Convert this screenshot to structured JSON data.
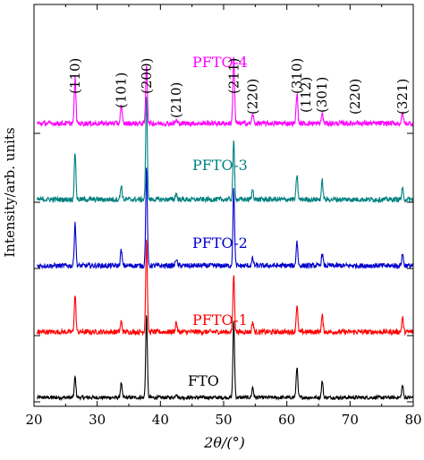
{
  "chart_data": {
    "type": "line",
    "title": "",
    "xlabel": "2θ/(°)",
    "ylabel": "Intensity/arb. units",
    "xlim": [
      20,
      80
    ],
    "x_ticks": [
      20,
      30,
      40,
      50,
      60,
      70,
      80
    ],
    "y_ticks_per_series": 1,
    "grid": false,
    "legend": "inline labels on each trace",
    "series": [
      {
        "name": "FTO",
        "color": "#000000",
        "offset": 0,
        "noise": 0.25,
        "peaks": [
          [
            26.5,
            2.0
          ],
          [
            33.8,
            1.4
          ],
          [
            37.8,
            8.0
          ],
          [
            42.5,
            0.4
          ],
          [
            51.6,
            7.4
          ],
          [
            54.6,
            1.0
          ],
          [
            61.6,
            3.0
          ],
          [
            65.6,
            1.6
          ],
          [
            78.3,
            1.2
          ]
        ]
      },
      {
        "name": "PFTO-1",
        "color": "#ff0000",
        "offset": 1,
        "noise": 0.35,
        "peaks": [
          [
            26.5,
            3.6
          ],
          [
            33.8,
            1.0
          ],
          [
            37.8,
            9.0
          ],
          [
            42.5,
            1.0
          ],
          [
            51.6,
            5.6
          ],
          [
            54.6,
            1.0
          ],
          [
            61.6,
            2.6
          ],
          [
            65.6,
            1.6
          ],
          [
            78.3,
            1.4
          ]
        ]
      },
      {
        "name": "PFTO-2",
        "color": "#0000cd",
        "offset": 2,
        "noise": 0.35,
        "peaks": [
          [
            26.5,
            4.2
          ],
          [
            33.8,
            1.5
          ],
          [
            37.8,
            9.4
          ],
          [
            42.5,
            0.7
          ],
          [
            51.6,
            7.4
          ],
          [
            54.6,
            0.7
          ],
          [
            61.6,
            2.4
          ],
          [
            65.6,
            1.2
          ],
          [
            78.3,
            1.2
          ]
        ]
      },
      {
        "name": "PFTO-3",
        "color": "#008080",
        "offset": 3,
        "noise": 0.35,
        "peaks": [
          [
            26.5,
            4.6
          ],
          [
            33.8,
            1.4
          ],
          [
            37.8,
            10.0
          ],
          [
            42.5,
            0.6
          ],
          [
            51.6,
            5.6
          ],
          [
            54.6,
            1.0
          ],
          [
            61.6,
            2.4
          ],
          [
            65.6,
            1.8
          ],
          [
            78.3,
            1.0
          ]
        ]
      },
      {
        "name": "PFTO-4",
        "color": "#ff00ff",
        "offset": 4,
        "noise": 0.35,
        "peaks": [
          [
            26.5,
            4.4
          ],
          [
            33.8,
            1.8
          ],
          [
            37.8,
            5.8
          ],
          [
            42.5,
            0.3
          ],
          [
            51.6,
            6.6
          ],
          [
            54.6,
            0.9
          ],
          [
            61.6,
            3.0
          ],
          [
            65.6,
            1.0
          ],
          [
            71.0,
            0.2
          ],
          [
            78.3,
            1.0
          ]
        ]
      }
    ],
    "annotations": [
      {
        "text": "(110)",
        "x": 26.5
      },
      {
        "text": "(101)",
        "x": 33.8
      },
      {
        "text": "(200)",
        "x": 37.8
      },
      {
        "text": "(210)",
        "x": 42.5
      },
      {
        "text": "(211)",
        "x": 51.6
      },
      {
        "text": "(220)",
        "x": 54.6
      },
      {
        "text": "(310)",
        "x": 61.6
      },
      {
        "text": "(112)",
        "x": 63.0
      },
      {
        "text": "(301)",
        "x": 65.6
      },
      {
        "text": "(220)",
        "x": 70.8
      },
      {
        "text": "(321)",
        "x": 78.3
      }
    ]
  }
}
